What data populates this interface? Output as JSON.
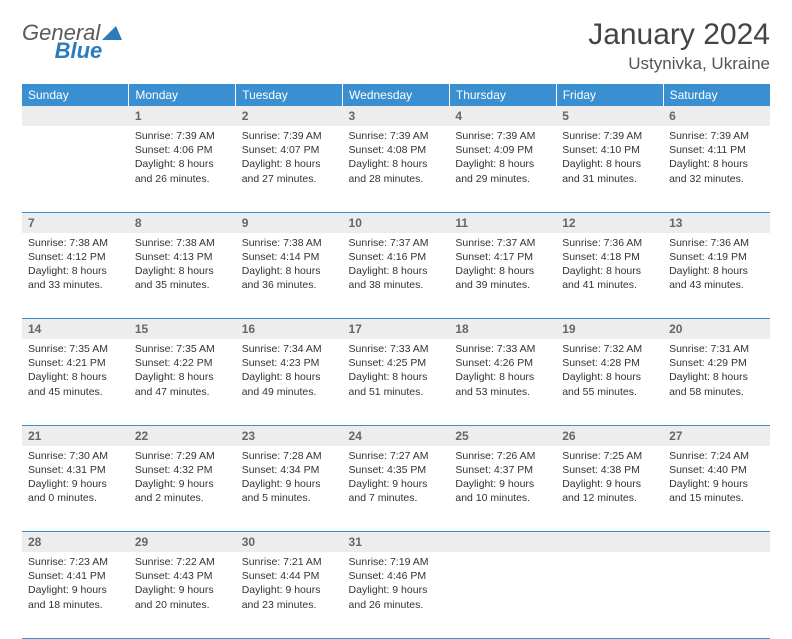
{
  "logo": {
    "text1": "General",
    "text2": "Blue"
  },
  "title": "January 2024",
  "location": "Ustynivka, Ukraine",
  "colors": {
    "header_bg": "#3a8fd0",
    "header_text": "#ffffff",
    "daynum_bg": "#ededed",
    "border": "#3a8fd0",
    "logo_gray": "#5a5a5a",
    "logo_blue": "#2b7bbd"
  },
  "day_headers": [
    "Sunday",
    "Monday",
    "Tuesday",
    "Wednesday",
    "Thursday",
    "Friday",
    "Saturday"
  ],
  "weeks": [
    {
      "nums": [
        "",
        "1",
        "2",
        "3",
        "4",
        "5",
        "6"
      ],
      "cells": [
        "",
        "Sunrise: 7:39 AM\nSunset: 4:06 PM\nDaylight: 8 hours and 26 minutes.",
        "Sunrise: 7:39 AM\nSunset: 4:07 PM\nDaylight: 8 hours and 27 minutes.",
        "Sunrise: 7:39 AM\nSunset: 4:08 PM\nDaylight: 8 hours and 28 minutes.",
        "Sunrise: 7:39 AM\nSunset: 4:09 PM\nDaylight: 8 hours and 29 minutes.",
        "Sunrise: 7:39 AM\nSunset: 4:10 PM\nDaylight: 8 hours and 31 minutes.",
        "Sunrise: 7:39 AM\nSunset: 4:11 PM\nDaylight: 8 hours and 32 minutes."
      ]
    },
    {
      "nums": [
        "7",
        "8",
        "9",
        "10",
        "11",
        "12",
        "13"
      ],
      "cells": [
        "Sunrise: 7:38 AM\nSunset: 4:12 PM\nDaylight: 8 hours and 33 minutes.",
        "Sunrise: 7:38 AM\nSunset: 4:13 PM\nDaylight: 8 hours and 35 minutes.",
        "Sunrise: 7:38 AM\nSunset: 4:14 PM\nDaylight: 8 hours and 36 minutes.",
        "Sunrise: 7:37 AM\nSunset: 4:16 PM\nDaylight: 8 hours and 38 minutes.",
        "Sunrise: 7:37 AM\nSunset: 4:17 PM\nDaylight: 8 hours and 39 minutes.",
        "Sunrise: 7:36 AM\nSunset: 4:18 PM\nDaylight: 8 hours and 41 minutes.",
        "Sunrise: 7:36 AM\nSunset: 4:19 PM\nDaylight: 8 hours and 43 minutes."
      ]
    },
    {
      "nums": [
        "14",
        "15",
        "16",
        "17",
        "18",
        "19",
        "20"
      ],
      "cells": [
        "Sunrise: 7:35 AM\nSunset: 4:21 PM\nDaylight: 8 hours and 45 minutes.",
        "Sunrise: 7:35 AM\nSunset: 4:22 PM\nDaylight: 8 hours and 47 minutes.",
        "Sunrise: 7:34 AM\nSunset: 4:23 PM\nDaylight: 8 hours and 49 minutes.",
        "Sunrise: 7:33 AM\nSunset: 4:25 PM\nDaylight: 8 hours and 51 minutes.",
        "Sunrise: 7:33 AM\nSunset: 4:26 PM\nDaylight: 8 hours and 53 minutes.",
        "Sunrise: 7:32 AM\nSunset: 4:28 PM\nDaylight: 8 hours and 55 minutes.",
        "Sunrise: 7:31 AM\nSunset: 4:29 PM\nDaylight: 8 hours and 58 minutes."
      ]
    },
    {
      "nums": [
        "21",
        "22",
        "23",
        "24",
        "25",
        "26",
        "27"
      ],
      "cells": [
        "Sunrise: 7:30 AM\nSunset: 4:31 PM\nDaylight: 9 hours and 0 minutes.",
        "Sunrise: 7:29 AM\nSunset: 4:32 PM\nDaylight: 9 hours and 2 minutes.",
        "Sunrise: 7:28 AM\nSunset: 4:34 PM\nDaylight: 9 hours and 5 minutes.",
        "Sunrise: 7:27 AM\nSunset: 4:35 PM\nDaylight: 9 hours and 7 minutes.",
        "Sunrise: 7:26 AM\nSunset: 4:37 PM\nDaylight: 9 hours and 10 minutes.",
        "Sunrise: 7:25 AM\nSunset: 4:38 PM\nDaylight: 9 hours and 12 minutes.",
        "Sunrise: 7:24 AM\nSunset: 4:40 PM\nDaylight: 9 hours and 15 minutes."
      ]
    },
    {
      "nums": [
        "28",
        "29",
        "30",
        "31",
        "",
        "",
        ""
      ],
      "cells": [
        "Sunrise: 7:23 AM\nSunset: 4:41 PM\nDaylight: 9 hours and 18 minutes.",
        "Sunrise: 7:22 AM\nSunset: 4:43 PM\nDaylight: 9 hours and 20 minutes.",
        "Sunrise: 7:21 AM\nSunset: 4:44 PM\nDaylight: 9 hours and 23 minutes.",
        "Sunrise: 7:19 AM\nSunset: 4:46 PM\nDaylight: 9 hours and 26 minutes.",
        "",
        "",
        ""
      ]
    }
  ]
}
